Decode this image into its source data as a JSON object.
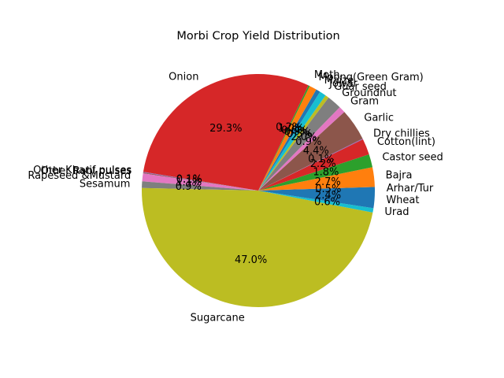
{
  "chart_data": {
    "type": "pie",
    "title": "Morbi Crop Yield Distribution",
    "start_angle_deg": 0,
    "direction": "counterclockwise",
    "slices": [
      {
        "label": "Arhar/Tur",
        "value": 0.5,
        "pct": "0.5%",
        "color": "#1f77b4"
      },
      {
        "label": "Bajra",
        "value": 2.7,
        "pct": "2.7%",
        "color": "#ff7f0e"
      },
      {
        "label": "Castor seed",
        "value": 1.8,
        "pct": "1.8%",
        "color": "#2ca02c"
      },
      {
        "label": "Cotton(lint)",
        "value": 2.2,
        "pct": "2.2%",
        "color": "#d62728"
      },
      {
        "label": "Dry chillies",
        "value": 0.1,
        "pct": "0.1%",
        "color": "#9467bd"
      },
      {
        "label": "Garlic",
        "value": 4.4,
        "pct": "4.4%",
        "color": "#8c564b"
      },
      {
        "label": "Gram",
        "value": 0.9,
        "pct": "0.9%",
        "color": "#e377c2"
      },
      {
        "label": "Groundnut",
        "value": 2.0,
        "pct": "2.0%",
        "color": "#7f7f7f"
      },
      {
        "label": "Guar seed",
        "value": 0.5,
        "pct": "0.5%",
        "color": "#bcbd22"
      },
      {
        "label": "Jowar",
        "value": 0.9,
        "pct": "0.9%",
        "color": "#17becf"
      },
      {
        "label": "Maize",
        "value": 0.6,
        "pct": "0.6%",
        "color": "#1f77b4"
      },
      {
        "label": "Moong(Green Gram)",
        "value": 1.0,
        "pct": "1.0%",
        "color": "#ff7f0e"
      },
      {
        "label": "Moth",
        "value": 0.2,
        "pct": "0.2%",
        "color": "#2ca02c"
      },
      {
        "label": "Onion",
        "value": 29.3,
        "pct": "29.3%",
        "color": "#d62728"
      },
      {
        "label": "Other Kharif pulses",
        "value": 0.1,
        "pct": "0.1%",
        "color": "#9467bd"
      },
      {
        "label": "Other Rabi pulses",
        "value": 0.1,
        "pct": "0.1%",
        "color": "#8c564b"
      },
      {
        "label": "Rapeseed &Mustard",
        "value": 1.1,
        "pct": "1.1%",
        "color": "#e377c2"
      },
      {
        "label": "Sesamum",
        "value": 0.9,
        "pct": "0.9%",
        "color": "#7f7f7f"
      },
      {
        "label": "Sugarcane",
        "value": 47.0,
        "pct": "47.0%",
        "color": "#bcbd22"
      },
      {
        "label": "Urad",
        "value": 0.6,
        "pct": "0.6%",
        "color": "#17becf"
      },
      {
        "label": "Wheat",
        "value": 2.4,
        "pct": "2.4%",
        "color": "#1f77b4"
      }
    ]
  }
}
